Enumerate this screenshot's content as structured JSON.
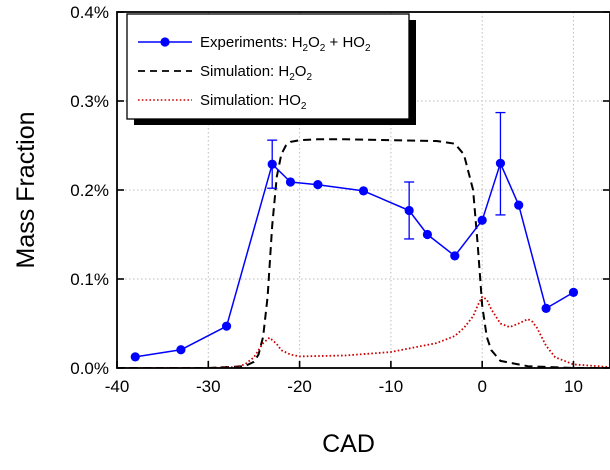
{
  "chart_data": {
    "type": "line",
    "xlabel": "CAD",
    "ylabel": "Mass Fraction",
    "xlim": [
      -40,
      14
    ],
    "ylim": [
      0,
      0.4
    ],
    "x_ticks": [
      -40,
      -30,
      -20,
      -10,
      0,
      10
    ],
    "x_tick_labels": [
      "-40",
      "-30",
      "-20",
      "-10",
      "0",
      "10"
    ],
    "y_ticks": [
      0,
      0.1,
      0.2,
      0.3,
      0.4
    ],
    "y_tick_labels": [
      "0.0%",
      "0.1%",
      "0.2%",
      "0.3%",
      "0.4%"
    ],
    "grid": true,
    "legend_placement": "top-left",
    "series": [
      {
        "name": "Experiments: H₂O₂ + HO₂",
        "style": "line-markers",
        "color": "#0000ff",
        "x": [
          -38,
          -33,
          -28,
          -23,
          -21,
          -18,
          -13,
          -8,
          -6,
          -3,
          0,
          2,
          4,
          7,
          10
        ],
        "y": [
          0.0125,
          0.0205,
          0.047,
          0.229,
          0.209,
          0.206,
          0.199,
          0.177,
          0.15,
          0.126,
          0.166,
          0.23,
          0.183,
          0.067,
          0.085
        ],
        "error_bars": [
          {
            "x": -23,
            "y_low": 0.202,
            "y_high": 0.256
          },
          {
            "x": -8,
            "y_low": 0.145,
            "y_high": 0.209
          },
          {
            "x": 2,
            "y_low": 0.172,
            "y_high": 0.287
          }
        ]
      },
      {
        "name": "Simulation: H₂O₂",
        "style": "dashed",
        "color": "#000000",
        "x": [
          -40,
          -30,
          -26,
          -25,
          -24.5,
          -24,
          -23.5,
          -23,
          -22.5,
          -22,
          -21.5,
          -21,
          -20,
          -18,
          -15,
          -10,
          -5,
          -3,
          -2,
          -1,
          -0.5,
          0,
          0.5,
          1,
          2,
          5,
          10,
          14
        ],
        "y": [
          0,
          0,
          0.002,
          0.007,
          0.015,
          0.035,
          0.08,
          0.16,
          0.215,
          0.24,
          0.25,
          0.254,
          0.256,
          0.257,
          0.257,
          0.256,
          0.255,
          0.252,
          0.24,
          0.2,
          0.14,
          0.07,
          0.035,
          0.02,
          0.008,
          0.002,
          0,
          0
        ]
      },
      {
        "name": "Simulation: HO₂",
        "style": "dotted",
        "color": "#cc0000",
        "x": [
          -40,
          -30,
          -27,
          -26,
          -25,
          -24,
          -23.3,
          -22.5,
          -22,
          -21,
          -20,
          -15,
          -10,
          -5,
          -3,
          -2,
          -1,
          -0.5,
          0,
          0.5,
          1,
          2,
          3,
          4,
          5,
          5.5,
          6,
          7,
          8,
          10,
          14
        ],
        "y": [
          0,
          0,
          0.001,
          0.004,
          0.012,
          0.028,
          0.034,
          0.027,
          0.02,
          0.015,
          0.013,
          0.014,
          0.018,
          0.028,
          0.036,
          0.045,
          0.058,
          0.07,
          0.08,
          0.077,
          0.066,
          0.05,
          0.046,
          0.05,
          0.055,
          0.052,
          0.045,
          0.025,
          0.012,
          0.004,
          0.001
        ]
      }
    ]
  },
  "legend": {
    "items": [
      {
        "prefix": "Experiments: H",
        "sub1": "2",
        "mid": "O",
        "sub2": "2",
        "suffix": " + HO",
        "sub3": "2"
      },
      {
        "prefix": "Simulation: H",
        "sub1": "2",
        "mid": "O",
        "sub2": "2"
      },
      {
        "prefix": "Simulation: HO",
        "sub1": "2"
      }
    ]
  }
}
